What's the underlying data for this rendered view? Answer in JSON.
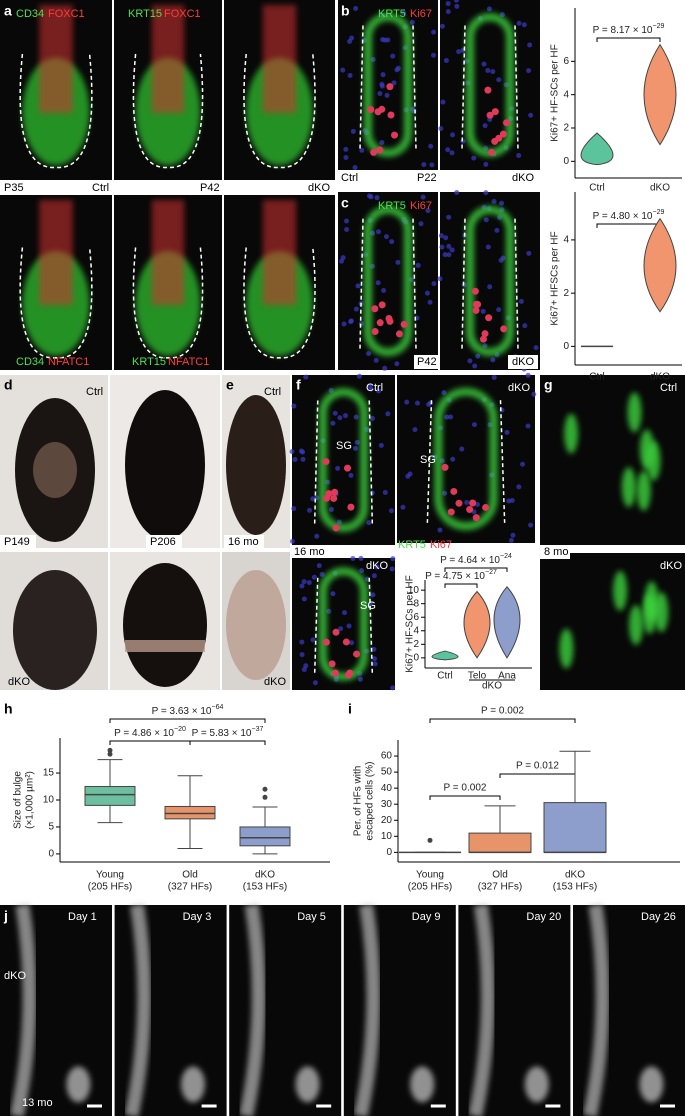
{
  "panel_a": {
    "label": "a",
    "row1_col1_stain": [
      "CD34",
      "FOXC1"
    ],
    "row1_col2_stain": [
      "KRT15",
      "FOXC1"
    ],
    "age1": "P35",
    "ctrl": "Ctrl",
    "age2": "P42",
    "dko": "dKO",
    "row2_col1_stain": [
      "CD34",
      "NFATC1"
    ],
    "row2_col2_stain": [
      "KRT15",
      "NFATC1"
    ]
  },
  "panel_b": {
    "label": "b",
    "stain": [
      "KRT5",
      "Ki67"
    ],
    "ctrl": "Ctrl",
    "age": "P22",
    "dko": "dKO"
  },
  "panel_c": {
    "label": "c",
    "stain": [
      "KRT5",
      "Ki67"
    ],
    "age": "P42",
    "dko": "dKO"
  },
  "panel_d": {
    "label": "d",
    "ctrl": "Ctrl",
    "age1": "P149",
    "age2": "P206",
    "dko": "dKO"
  },
  "panel_e": {
    "label": "e",
    "ctrl": "Ctrl",
    "age": "16 mo",
    "dko": "dKO"
  },
  "panel_f": {
    "label": "f",
    "ctrl": "Ctrl",
    "dko_top": "dKO",
    "sg": [
      "SG",
      "SG",
      "SG"
    ],
    "age": "16 mo",
    "stain": [
      "KRT5",
      "Ki67"
    ],
    "dko_bottom": "dKO"
  },
  "panel_g": {
    "label": "g",
    "ctrl": "Ctrl",
    "age": "8 mo",
    "dko": "dKO"
  },
  "panel_h": {
    "label": "h"
  },
  "panel_i": {
    "label": "i"
  },
  "panel_j": {
    "label": "j",
    "days": [
      "Day 1",
      "Day 3",
      "Day 5",
      "Day 9",
      "Day 20",
      "Day 26"
    ],
    "genotype": "dKO",
    "age": "13 mo"
  },
  "chart_data": [
    {
      "type": "violin",
      "p_values": [
        {
          "base": "P = 8.17 × 10",
          "exp": "−29"
        }
      ],
      "ylabel": "Ki67+ HF-SCs per HF",
      "categories": [
        "Ctrl",
        "dKO"
      ],
      "groups": [
        {
          "min": -0.2,
          "max": 1.7,
          "peak": 0,
          "color": "#5cc49c"
        },
        {
          "min": 1,
          "max": 7,
          "peak": 4,
          "color": "#f0956e"
        }
      ],
      "ylim": [
        -1,
        9.2
      ],
      "yticks": [
        0,
        2,
        4,
        6
      ]
    },
    {
      "type": "violin",
      "p_values": [
        {
          "base": "P = 4.80 × 10",
          "exp": "−29"
        }
      ],
      "ylabel": "Ki67+ HFSCs per HF",
      "categories": [
        "Ctrl",
        "dKO"
      ],
      "groups": [
        {
          "min": 0,
          "max": 0,
          "peak": 0,
          "color": "#5cc49c"
        },
        {
          "min": 1.3,
          "max": 4.8,
          "peak": 3,
          "color": "#f0956e"
        }
      ],
      "ylim": [
        -0.7,
        5.8
      ],
      "yticks": [
        0,
        2,
        4
      ]
    },
    {
      "type": "violin",
      "p_values": [
        {
          "base": "P = 4.64 × 10",
          "exp": "−24"
        },
        {
          "base": "P = 4.75 × 10",
          "exp": "−27"
        }
      ],
      "ylabel": "Ki67+ HF-SCs per HF",
      "categories": [
        "Ctrl",
        "Telo",
        "Ana"
      ],
      "group_label": "dKO",
      "groups": [
        {
          "min": -0.3,
          "max": 1,
          "peak": 0,
          "color": "#5cc49c"
        },
        {
          "min": 0,
          "max": 9.8,
          "peak": 5.5,
          "color": "#f0956e"
        },
        {
          "min": 0,
          "max": 10.5,
          "peak": 6,
          "color": "#8d9dcc"
        }
      ],
      "ylim": [
        -1.5,
        11.5
      ],
      "yticks": [
        0,
        2,
        4,
        6,
        8,
        10
      ]
    },
    {
      "type": "box",
      "p_values": [
        {
          "base": "P = 3.63 × 10",
          "exp": "−64"
        },
        {
          "base": "P = 4.86 × 10",
          "exp": "−20"
        },
        {
          "base": "P = 5.83 × 10",
          "exp": "−37"
        }
      ],
      "ylabel": [
        "Size of bulge",
        "(×1,000 µm²)"
      ],
      "categories": [
        [
          "Young",
          "(205 HFs)"
        ],
        [
          "Old",
          "(327 HFs)"
        ],
        [
          "dKO",
          "(153 HFs)"
        ]
      ],
      "boxes": [
        {
          "whislo": 5.8,
          "q1": 9,
          "med": 11,
          "q3": 12.5,
          "whishi": 17.5,
          "color": "#6cc0a0",
          "fliers": [
            18.5,
            19.2
          ]
        },
        {
          "whislo": 1,
          "q1": 6.5,
          "med": 7.5,
          "q3": 8.8,
          "whishi": 14.5,
          "color": "#e8946a",
          "fliers": []
        },
        {
          "whislo": 0,
          "q1": 1.5,
          "med": 3,
          "q3": 5,
          "whishi": 8.7,
          "color": "#8d9dcc",
          "fliers": [
            10.5,
            12
          ]
        }
      ],
      "ylim": [
        -1.5,
        21.5
      ],
      "yticks": [
        0,
        5,
        10,
        15
      ]
    },
    {
      "type": "box",
      "p_values": [
        "P = 0.002",
        "P = 0.002",
        "P = 0.012"
      ],
      "ylabel": [
        "Per. of HFs with",
        "escaped cells (%)"
      ],
      "categories": [
        [
          "Young",
          "(205 HFs)"
        ],
        [
          "Old",
          "(327 HFs)"
        ],
        [
          "dKO",
          "(153 HFs)"
        ]
      ],
      "boxes": [
        {
          "whislo": 0,
          "q1": 0,
          "med": 0,
          "q3": 0,
          "whishi": 0,
          "color": "#6cc0a0",
          "fliers": [
            7.5
          ]
        },
        {
          "whislo": 0,
          "q1": 0,
          "med": 0,
          "q3": 12,
          "whishi": 29,
          "color": "#e8946a",
          "fliers": []
        },
        {
          "whislo": 0,
          "q1": 0,
          "med": 0,
          "q3": 31,
          "whishi": 63,
          "color": "#8d9dcc",
          "fliers": []
        }
      ],
      "ylim": [
        -6,
        70
      ],
      "yticks": [
        0,
        10,
        20,
        30,
        40,
        50,
        60
      ]
    }
  ]
}
